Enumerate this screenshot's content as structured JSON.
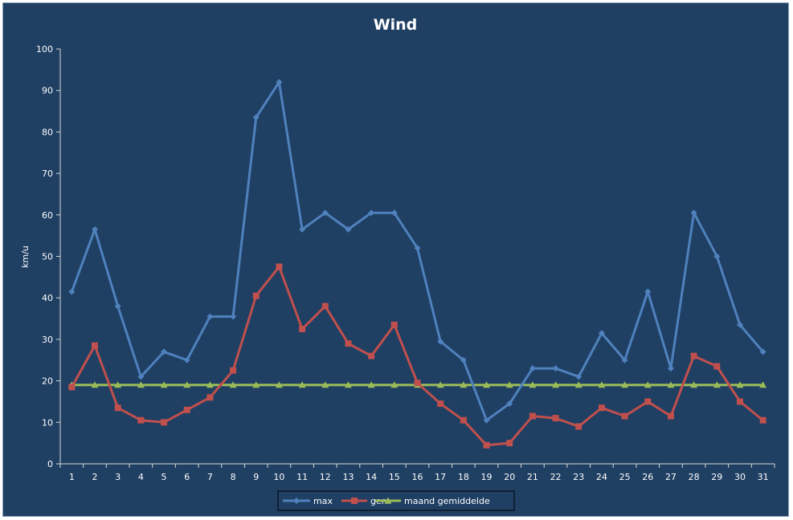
{
  "chart_data": {
    "type": "line",
    "title": "Wind",
    "xlabel": "",
    "ylabel": "km/u",
    "ylim": [
      0,
      100
    ],
    "yticks": [
      0,
      10,
      20,
      30,
      40,
      50,
      60,
      70,
      80,
      90,
      100
    ],
    "categories": [
      "1",
      "2",
      "3",
      "4",
      "5",
      "6",
      "7",
      "8",
      "9",
      "10",
      "11",
      "12",
      "13",
      "14",
      "15",
      "16",
      "17",
      "18",
      "19",
      "20",
      "21",
      "22",
      "23",
      "24",
      "25",
      "26",
      "27",
      "28",
      "29",
      "30",
      "31"
    ],
    "series": [
      {
        "name": "max",
        "color": "#4f81bd",
        "marker": "diamond",
        "values": [
          41.5,
          56.5,
          38,
          21,
          27,
          25,
          35.5,
          35.5,
          83.5,
          92,
          56.5,
          60.5,
          56.5,
          60.5,
          60.5,
          52,
          29.5,
          25,
          10.5,
          14.5,
          23,
          23,
          21,
          31.5,
          25,
          41.5,
          23,
          60.5,
          50,
          33.5,
          27
        ]
      },
      {
        "name": "gem",
        "color": "#c0504d",
        "marker": "square",
        "values": [
          18.5,
          28.5,
          13.5,
          10.5,
          10,
          13,
          16,
          22.5,
          40.5,
          47.5,
          32.5,
          38,
          29,
          26,
          33.5,
          19.5,
          14.5,
          10.5,
          4.5,
          5,
          11.5,
          11,
          9,
          13.5,
          11.5,
          15,
          11.5,
          26,
          23.5,
          15,
          10.5
        ]
      },
      {
        "name": "maand gemiddelde",
        "color": "#9bbb59",
        "marker": "triangle",
        "values": [
          19,
          19,
          19,
          19,
          19,
          19,
          19,
          19,
          19,
          19,
          19,
          19,
          19,
          19,
          19,
          19,
          19,
          19,
          19,
          19,
          19,
          19,
          19,
          19,
          19,
          19,
          19,
          19,
          19,
          19,
          19
        ]
      }
    ],
    "legend": "bottom",
    "grid": false
  }
}
